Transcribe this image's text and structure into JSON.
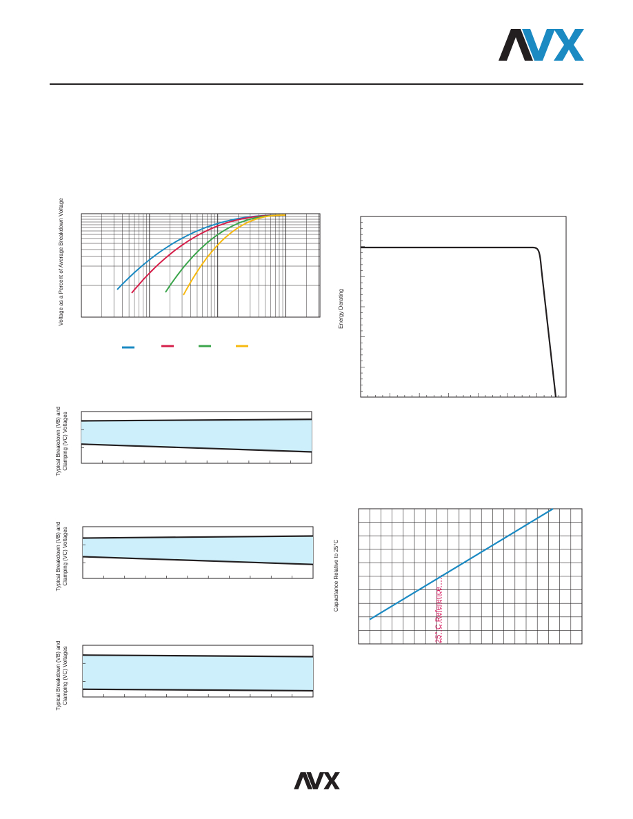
{
  "header": {
    "logo": "AVX"
  },
  "footer": {
    "logo": "AVX"
  },
  "colors": {
    "blue": "#1b8ac3",
    "red": "#d6204b",
    "green": "#3aa54b",
    "yellow": "#f7b90f",
    "fill": "#cdeefb",
    "pink": "#d4145a"
  },
  "chart_data": [
    {
      "type": "line",
      "ylabel": "Voltage as a Percent of Average Breakdown Voltage",
      "scale": "log-log",
      "series": [
        {
          "color": "blue"
        },
        {
          "color": "red"
        },
        {
          "color": "green"
        },
        {
          "color": "yellow"
        }
      ]
    },
    {
      "type": "line",
      "ylabel": "Energy Derating",
      "series": [
        {
          "color": "black"
        }
      ]
    },
    {
      "type": "area",
      "ylabel": "Typical Breakdown (VB) and Clamping (VC) Voltages",
      "series": [
        {
          "name": "VC",
          "values": [
            0.82,
            0.85
          ]
        },
        {
          "name": "VB",
          "values": [
            0.37,
            0.22
          ]
        }
      ]
    },
    {
      "type": "area",
      "ylabel": "Typical Breakdown (VB) and Clamping (VC) Voltages",
      "series": [
        {
          "name": "VC",
          "values": [
            0.78,
            0.82
          ]
        },
        {
          "name": "VB",
          "values": [
            0.42,
            0.27
          ]
        }
      ]
    },
    {
      "type": "area",
      "ylabel": "Typical Breakdown (VB) and Clamping (VC) Voltages",
      "series": [
        {
          "name": "VC",
          "values": [
            0.81,
            0.78
          ]
        },
        {
          "name": "VB",
          "values": [
            0.15,
            0.12
          ]
        }
      ]
    },
    {
      "type": "line",
      "ylabel": "Capacitance Relative to 25°C",
      "annotation": "25° C Reference",
      "series": [
        {
          "color": "blue",
          "values": [
            0.18,
            1.0
          ]
        }
      ]
    }
  ]
}
